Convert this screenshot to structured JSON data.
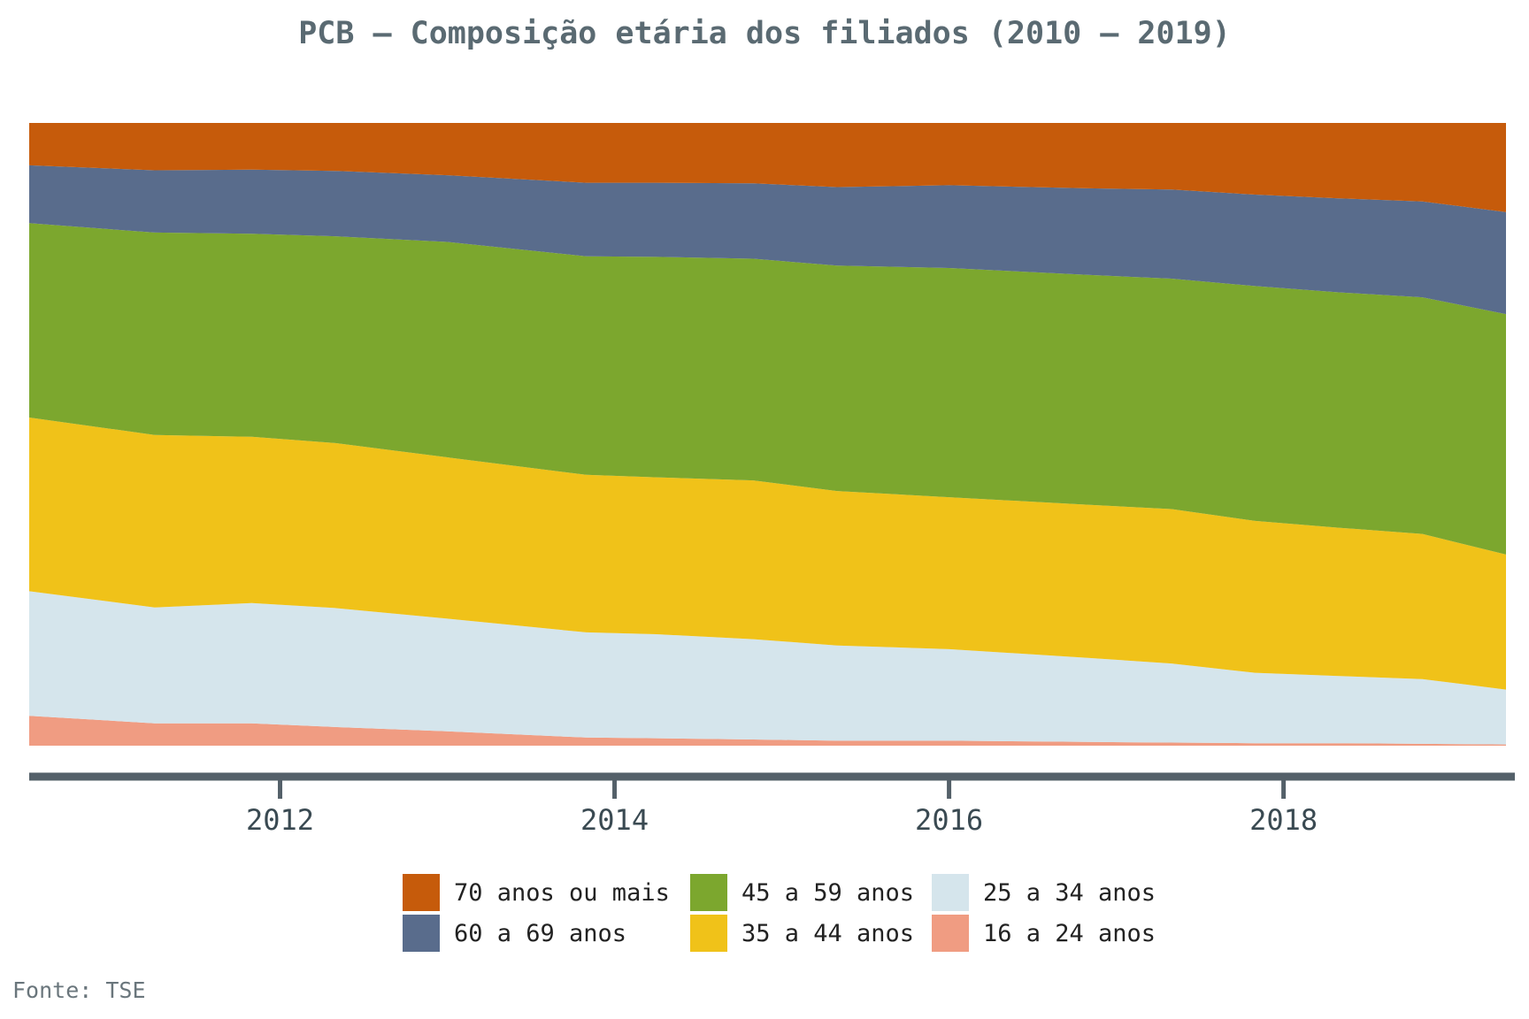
{
  "chart_data": {
    "type": "area",
    "stacked": "percent",
    "title": "PCB – Composição etária dos filiados (2010 – 2019)",
    "x": [
      2010.5,
      2011.25,
      2011.83,
      2012.33,
      2013.0,
      2013.83,
      2014.25,
      2014.83,
      2015.33,
      2016.0,
      2016.83,
      2017.33,
      2017.83,
      2018.33,
      2018.83,
      2019.33
    ],
    "xticks": [
      2012,
      2014,
      2016,
      2018
    ],
    "ylim": [
      0,
      100
    ],
    "series": [
      {
        "name": "16 a 24 anos",
        "color": "#f09c82",
        "values": [
          4.8,
          3.6,
          3.6,
          3.0,
          2.3,
          1.3,
          1.2,
          1.0,
          0.8,
          0.8,
          0.6,
          0.5,
          0.4,
          0.4,
          0.3,
          0.2
        ]
      },
      {
        "name": "25 a 34 anos",
        "color": "#d5e5ec",
        "values": [
          20.0,
          18.6,
          19.3,
          19.1,
          18.1,
          16.9,
          16.7,
          16.1,
          15.3,
          14.7,
          13.5,
          12.7,
          11.3,
          10.8,
          10.4,
          8.8
        ]
      },
      {
        "name": "35 a 44 anos",
        "color": "#f0c219",
        "values": [
          27.9,
          27.7,
          26.7,
          26.5,
          25.9,
          25.3,
          25.2,
          25.5,
          24.8,
          24.4,
          24.6,
          24.8,
          24.4,
          23.8,
          23.3,
          21.7
        ]
      },
      {
        "name": "45 a 59 anos",
        "color": "#7ca72e",
        "values": [
          31.2,
          32.5,
          32.6,
          33.2,
          34.6,
          35.1,
          35.4,
          35.6,
          36.2,
          36.8,
          36.9,
          37.0,
          37.7,
          37.8,
          38.0,
          38.6
        ]
      },
      {
        "name": "60 a 69 anos",
        "color": "#596c8c",
        "values": [
          9.3,
          10.0,
          10.3,
          10.5,
          10.7,
          11.8,
          11.9,
          12.1,
          12.6,
          13.3,
          13.9,
          14.3,
          14.7,
          15.1,
          15.4,
          16.4
        ]
      },
      {
        "name": "70 anos ou mais",
        "color": "#c65b0b",
        "values": [
          6.8,
          7.6,
          7.5,
          7.7,
          8.4,
          9.6,
          9.6,
          9.7,
          10.3,
          10.0,
          10.5,
          10.7,
          11.5,
          12.1,
          12.6,
          14.3
        ]
      }
    ]
  },
  "legend": {
    "order": [
      "70 anos ou mais",
      "60 a 69 anos",
      "45 a 59 anos",
      "35 a 44 anos",
      "25 a 34 anos",
      "16 a 24 anos"
    ]
  },
  "source": "Fonte: TSE"
}
